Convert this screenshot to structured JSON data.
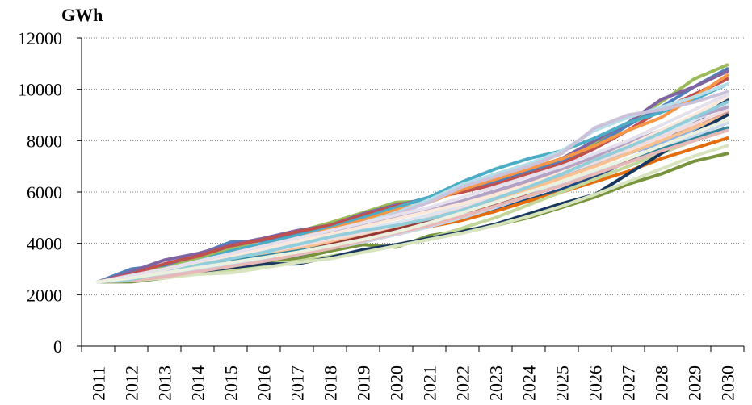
{
  "chart_data": {
    "type": "line",
    "ylabel": "GWh",
    "ylim": [
      0,
      12000
    ],
    "yticks": [
      0,
      2000,
      4000,
      6000,
      8000,
      10000,
      12000
    ],
    "x": [
      "2011",
      "2012",
      "2013",
      "2014",
      "2015",
      "2016",
      "2017",
      "2018",
      "2019",
      "2020",
      "2021",
      "2022",
      "2023",
      "2024",
      "2025",
      "2026",
      "2027",
      "2028",
      "2029",
      "2030"
    ],
    "grid": "horizontal dotted",
    "legend": "none",
    "series": [
      {
        "color": "#9bbb59",
        "values": [
          2500,
          2750,
          3050,
          3400,
          3800,
          4150,
          4450,
          4800,
          5200,
          5600,
          5650,
          6100,
          6500,
          6900,
          7300,
          7900,
          8700,
          9500,
          10400,
          10950
        ]
      },
      {
        "color": "#4f81bd",
        "values": [
          2500,
          3000,
          3150,
          3550,
          4050,
          4100,
          4400,
          4700,
          5100,
          5450,
          5800,
          6050,
          6400,
          6800,
          7200,
          7800,
          8600,
          9300,
          10100,
          10800
        ]
      },
      {
        "color": "#8064a2",
        "values": [
          2500,
          2900,
          3350,
          3600,
          3950,
          4200,
          4500,
          4700,
          5150,
          5500,
          5700,
          6200,
          6500,
          6900,
          7300,
          8000,
          8700,
          9600,
          10100,
          10700
        ]
      },
      {
        "color": "#c0504d",
        "values": [
          2500,
          2800,
          3200,
          3500,
          3900,
          4150,
          4450,
          4700,
          5100,
          5450,
          5750,
          6000,
          6300,
          6700,
          7100,
          7700,
          8400,
          9200,
          9800,
          10400
        ]
      },
      {
        "color": "#4bacc6",
        "values": [
          2500,
          2700,
          3000,
          3300,
          3700,
          4000,
          4300,
          4600,
          5000,
          5400,
          5800,
          6400,
          6900,
          7300,
          7600,
          8100,
          8700,
          9100,
          9600,
          10200
        ]
      },
      {
        "color": "#f79646",
        "values": [
          2500,
          2650,
          2950,
          3250,
          3600,
          3900,
          4200,
          4550,
          4900,
          5300,
          5600,
          6100,
          6500,
          6900,
          7300,
          7800,
          8400,
          8900,
          9700,
          10550
        ]
      },
      {
        "color": "#b7dee8",
        "values": [
          2500,
          2700,
          2900,
          3200,
          3550,
          3850,
          4150,
          4450,
          4800,
          5200,
          5700,
          6300,
          6700,
          7100,
          7600,
          8400,
          8900,
          9300,
          9700,
          10200
        ]
      },
      {
        "color": "#ccc1da",
        "values": [
          2500,
          2650,
          2850,
          3150,
          3450,
          3800,
          4100,
          4400,
          4750,
          5150,
          5600,
          6200,
          6600,
          7000,
          7500,
          8500,
          9000,
          9200,
          9500,
          9900
        ]
      },
      {
        "color": "#1f497d",
        "values": [
          2500,
          2550,
          2750,
          2950,
          3200,
          3300,
          3500,
          3800,
          4100,
          4500,
          4700,
          5000,
          5350,
          5700,
          6100,
          6600,
          7200,
          7900,
          8700,
          9600
        ]
      },
      {
        "color": "#77933c",
        "values": [
          2500,
          2500,
          2650,
          2900,
          3100,
          3300,
          3400,
          3700,
          3950,
          3850,
          4300,
          4500,
          4700,
          5000,
          5400,
          5800,
          6300,
          6700,
          7200,
          7500
        ]
      },
      {
        "color": "#e46c0a",
        "values": [
          2500,
          2600,
          2750,
          2950,
          3150,
          3350,
          3600,
          3800,
          4050,
          4350,
          4650,
          4900,
          5250,
          5650,
          6000,
          6400,
          6800,
          7300,
          7700,
          8100
        ]
      },
      {
        "color": "#8eb4e3",
        "values": [
          2500,
          2600,
          2800,
          3000,
          3300,
          3600,
          3800,
          4100,
          4350,
          4600,
          4900,
          5300,
          5750,
          6200,
          6650,
          7100,
          7500,
          7900,
          8400,
          8700
        ]
      },
      {
        "color": "#d99694",
        "values": [
          2500,
          2650,
          2850,
          3100,
          3350,
          3650,
          3900,
          4150,
          4450,
          4750,
          5100,
          5500,
          5950,
          6400,
          6900,
          7300,
          7750,
          8200,
          8600,
          9100
        ]
      },
      {
        "color": "#c3d69b",
        "values": [
          2500,
          2550,
          2700,
          2850,
          2950,
          3150,
          3300,
          3500,
          3700,
          3950,
          4200,
          4600,
          5000,
          5500,
          6000,
          6500,
          7000,
          7500,
          8000,
          8400
        ]
      },
      {
        "color": "#fac090",
        "values": [
          2500,
          2600,
          2800,
          3050,
          3300,
          3550,
          3800,
          4050,
          4300,
          4600,
          4900,
          5250,
          5700,
          6100,
          6550,
          7000,
          7500,
          8000,
          8500,
          9000
        ]
      },
      {
        "color": "#17375e",
        "values": [
          2500,
          2550,
          2700,
          2900,
          3050,
          3200,
          3200,
          3450,
          3750,
          3950,
          4200,
          4450,
          4750,
          5150,
          5550,
          5900,
          6700,
          7500,
          8300,
          9000
        ]
      },
      {
        "color": "#953735",
        "values": [
          2500,
          2600,
          2800,
          3000,
          3200,
          3400,
          3650,
          3950,
          4250,
          4550,
          4850,
          5200,
          5550,
          5900,
          6300,
          6750,
          7200,
          7700,
          8200,
          8700
        ]
      },
      {
        "color": "#dce6f2",
        "values": [
          2500,
          2700,
          2950,
          3200,
          3450,
          3700,
          3950,
          4250,
          4550,
          4800,
          5100,
          5500,
          5900,
          6300,
          6700,
          7200,
          7700,
          8200,
          8800,
          9400
        ]
      },
      {
        "color": "#f2dcdb",
        "values": [
          2500,
          2650,
          2900,
          3150,
          3400,
          3650,
          3900,
          4150,
          4400,
          4700,
          5000,
          5350,
          5800,
          6250,
          6700,
          7150,
          7650,
          8150,
          8650,
          9200
        ]
      },
      {
        "color": "#31859c",
        "values": [
          2500,
          2600,
          2800,
          3050,
          3300,
          3500,
          3700,
          3900,
          4100,
          4400,
          4700,
          5000,
          5400,
          5850,
          6300,
          6800,
          7300,
          7700,
          8100,
          8500
        ]
      },
      {
        "color": "#b3a2c7",
        "values": [
          2500,
          2700,
          2950,
          3250,
          3550,
          3850,
          4100,
          4400,
          4700,
          5000,
          5300,
          5650,
          6050,
          6450,
          6900,
          7400,
          7900,
          8400,
          8900,
          9300
        ]
      },
      {
        "color": "#d7e4bd",
        "values": [
          2500,
          2550,
          2650,
          2800,
          2850,
          3050,
          3250,
          3400,
          3650,
          3900,
          4150,
          4400,
          4700,
          5050,
          5450,
          5900,
          6400,
          6900,
          7400,
          7800
        ]
      },
      {
        "color": "#c6d9f1",
        "values": [
          2500,
          2600,
          2750,
          2950,
          3150,
          3350,
          3550,
          3800,
          4050,
          4350,
          4650,
          5000,
          5400,
          5850,
          6300,
          6800,
          7300,
          7800,
          8200,
          8700
        ]
      },
      {
        "color": "#e6b9b8",
        "values": [
          2500,
          2550,
          2700,
          2900,
          3100,
          3300,
          3550,
          3800,
          4100,
          4400,
          4700,
          5050,
          5450,
          5850,
          6250,
          6700,
          7150,
          7600,
          8000,
          8400
        ]
      },
      {
        "color": "#fde9d9",
        "values": [
          2500,
          2700,
          2950,
          3200,
          3500,
          3800,
          4100,
          4350,
          4650,
          4950,
          5250,
          5550,
          5900,
          6300,
          6750,
          7250,
          7800,
          8400,
          9000,
          9700
        ]
      },
      {
        "color": "#e5e0ec",
        "values": [
          2500,
          2750,
          3000,
          3300,
          3600,
          3900,
          4200,
          4500,
          4800,
          5100,
          5400,
          5800,
          6200,
          6600,
          7000,
          7500,
          8000,
          8600,
          9200,
          9800
        ]
      },
      {
        "color": "#92cddc",
        "values": [
          2500,
          2600,
          2850,
          3150,
          3400,
          3650,
          3950,
          4250,
          4500,
          4700,
          4950,
          5300,
          5750,
          6200,
          6700,
          7250,
          7750,
          8300,
          8900,
          9500
        ]
      },
      {
        "color": "#ebf1de",
        "values": [
          2500,
          2650,
          2850,
          3050,
          3250,
          3450,
          3650,
          3900,
          4150,
          4450,
          4800,
          5200,
          5600,
          6000,
          6400,
          6850,
          7300,
          7800,
          8300,
          8800
        ]
      }
    ]
  }
}
